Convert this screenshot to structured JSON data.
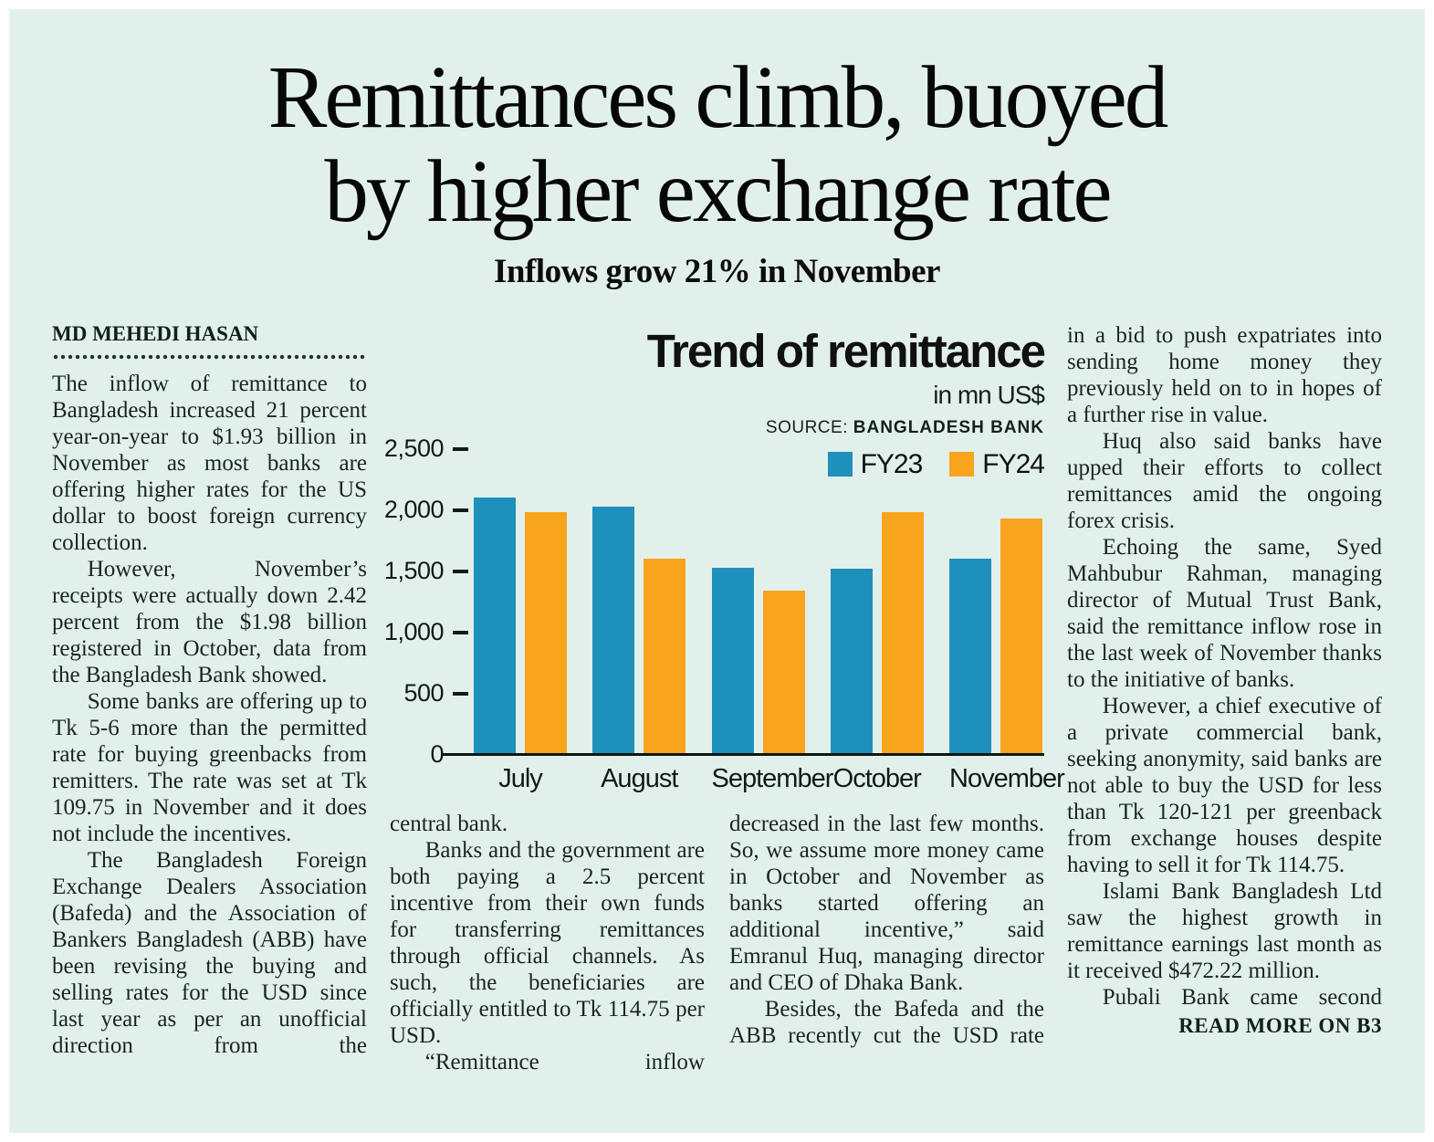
{
  "page": {
    "headline_line1": "Remittances climb, buoyed",
    "headline_line2": "by higher exchange rate",
    "subtitle": "Inflows grow 21% in November",
    "byline": "MD MEHEDI HASAN",
    "read_more": "READ MORE ON B3"
  },
  "columns": {
    "col1": [
      "The inflow of remittance to Bangladesh increased 21 percent year-on-year to $1.93 billion in November as most banks are offering higher rates for the US dollar to boost foreign currency collection.",
      "However, November’s receipts were actually down 2.42 percent from the $1.98 billion registered in October, data from the Bangladesh Bank showed.",
      "Some banks are offering up to Tk 5-6 more than the permitted rate for buying greenbacks from remitters. The rate was set at Tk 109.75 in November and it does not include the incentives.",
      "The Bangladesh Foreign Exchange Dealers Association (Bafeda) and the Association of Bankers Bangladesh (ABB) have been revising the buying and selling rates for the USD since last year as per an unofficial direction from the"
    ],
    "col2": [
      "central bank.",
      "Banks and the government are both paying a 2.5 percent incentive from their own funds for transferring remittances through official channels. As such, the beneficiaries are officially entitled to Tk 114.75 per USD.",
      "“Remittance inflow"
    ],
    "col3": [
      "decreased in the last few months. So, we assume more money came in October and November as banks started offering an additional incentive,” said Emranul Huq, managing director and CEO of Dhaka Bank.",
      "Besides, the Bafeda and the ABB recently cut the USD rate"
    ],
    "col4": [
      "in a bid to push expatriates into sending home money they previously held on to in hopes of a further rise in value.",
      "Huq also said banks have upped their efforts to collect remittances amid the ongoing forex crisis.",
      "Echoing the same, Syed Mahbubur Rahman, managing director of Mutual Trust Bank, said the remittance inflow rose in the last week of November thanks to the initiative of banks.",
      "However, a chief executive of a private commercial bank, seeking anonymity, said banks are not able to buy the USD for less than Tk 120-121 per greenback from exchange houses despite having to sell it for Tk 114.75.",
      "Islami Bank Bangladesh Ltd saw the highest growth in remittance earnings last month as it received $472.22 million.",
      "Pubali Bank came second"
    ]
  },
  "chart_data": {
    "type": "bar",
    "title": "Trend of remittance",
    "unit_label": "in mn US$",
    "source_label": "SOURCE:",
    "source_value": "BANGLADESH BANK",
    "categories": [
      "July",
      "August",
      "September",
      "October",
      "November"
    ],
    "series": [
      {
        "name": "FY23",
        "color": "#1e90bc",
        "values": [
          2100,
          2030,
          1530,
          1520,
          1600
        ]
      },
      {
        "name": "FY24",
        "color": "#f8a41d",
        "values": [
          1980,
          1600,
          1340,
          1980,
          1930
        ]
      }
    ],
    "ylim": [
      0,
      2500
    ],
    "yticks": [
      0,
      500,
      1000,
      1500,
      2000,
      2500
    ],
    "ytick_labels": [
      "0",
      "500",
      "1,000",
      "1,500",
      "2,000",
      "2,500"
    ],
    "xlabel": "",
    "ylabel": "",
    "grid": false,
    "legend_position": "top-right"
  },
  "colors": {
    "page_background": "#ffffff",
    "panel_background": "#e2f0ec",
    "text": "#1a2422",
    "fy23_blue": "#1e90bc",
    "fy24_orange": "#f8a41d"
  }
}
